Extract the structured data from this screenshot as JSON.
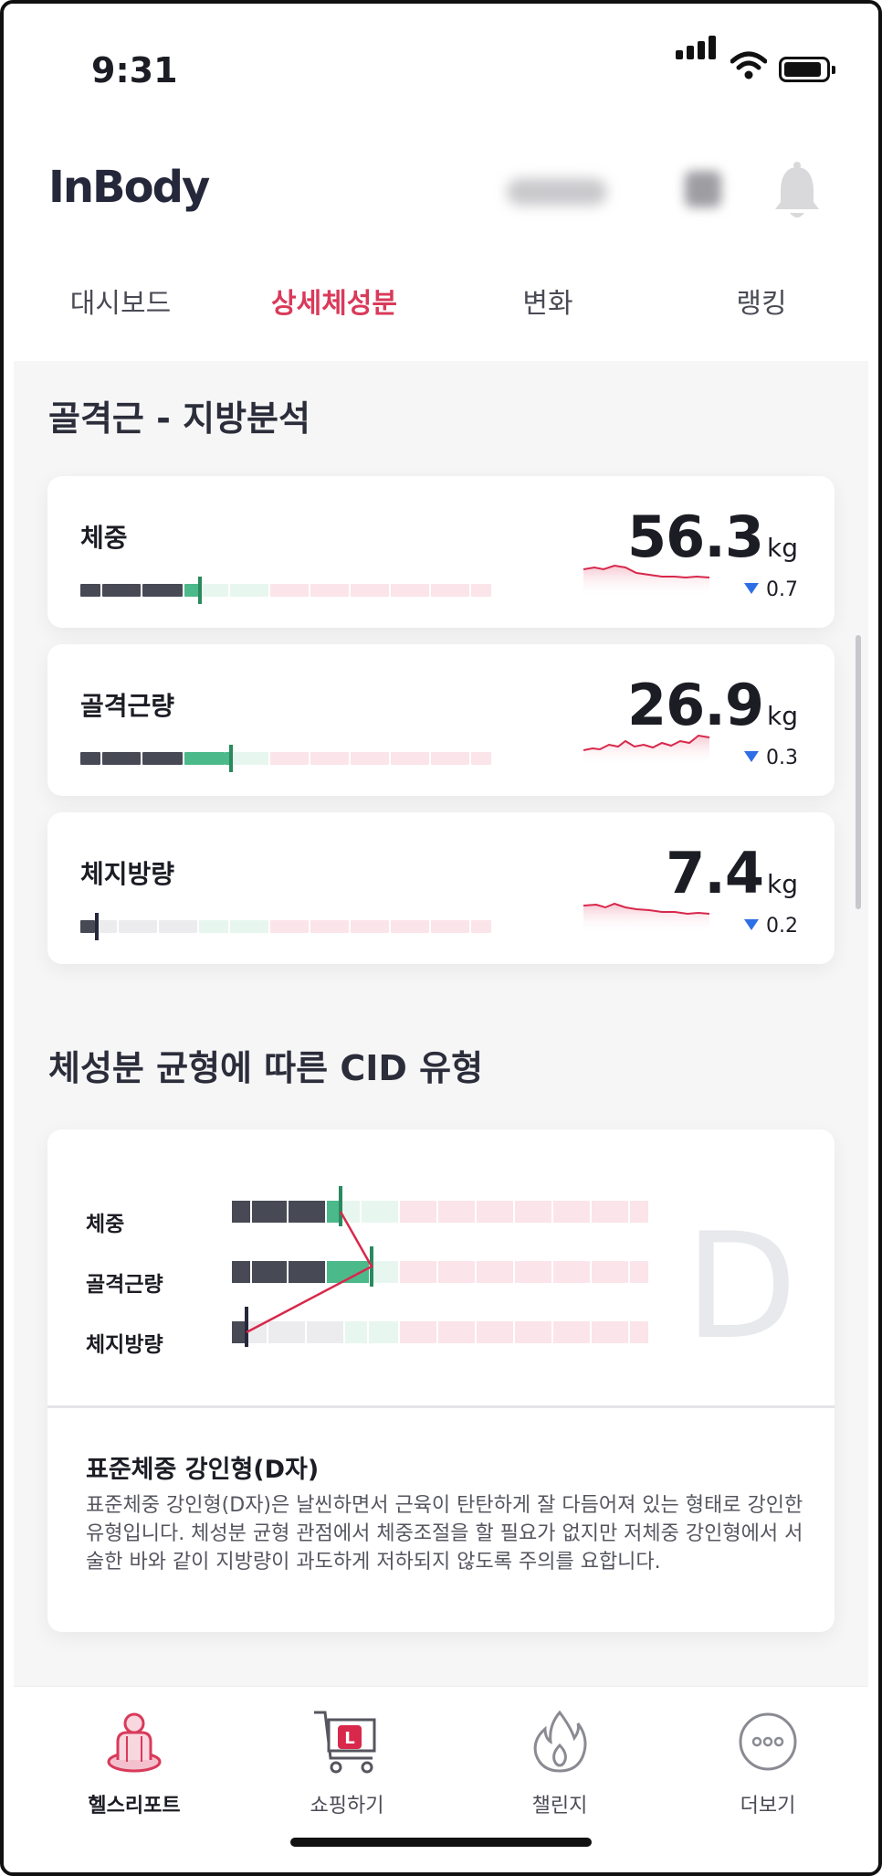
{
  "status": {
    "time": "9:31"
  },
  "header": {
    "logo": "InBody"
  },
  "tabs": [
    {
      "label": "대시보드",
      "active": false
    },
    {
      "label": "상세체성분",
      "active": true
    },
    {
      "label": "변화",
      "active": false
    },
    {
      "label": "랭킹",
      "active": false
    }
  ],
  "section1": {
    "title": "골격근 - 지방분석"
  },
  "metrics": [
    {
      "label": "체중",
      "value": "56.3",
      "unit": "kg",
      "change": "0.7",
      "direction": "down"
    },
    {
      "label": "골격근량",
      "value": "26.9",
      "unit": "kg",
      "change": "0.3",
      "direction": "down"
    },
    {
      "label": "체지방량",
      "value": "7.4",
      "unit": "kg",
      "change": "0.2",
      "direction": "down"
    }
  ],
  "section2": {
    "title": "체성분 균형에 따른 CID 유형"
  },
  "cid": {
    "rows": [
      "체중",
      "골격근량",
      "체지방량"
    ],
    "letter": "D",
    "type_title": "표준체중 강인형(D자)",
    "description": "표준체중 강인형(D자)은 날씬하면서 근육이 탄탄하게 잘 다듬어져 있는 형태로 강인한 유형입니다. 체성분 균형 관점에서 체중조절을 할 필요가 없지만 저체중 강인형에서 서술한 바와 같이 지방량이 과도하게 저하되지 않도록 주의를 요합니다."
  },
  "bottom_nav": [
    {
      "label": "헬스리포트",
      "icon": "health-report-icon",
      "active": true
    },
    {
      "label": "쇼핑하기",
      "icon": "shopping-cart-icon",
      "active": false
    },
    {
      "label": "챌린지",
      "icon": "flame-icon",
      "active": false
    },
    {
      "label": "더보기",
      "icon": "more-icon",
      "active": false
    }
  ],
  "colors": {
    "accent": "#d93a5a",
    "under": "#474a55",
    "normal": "#4cb98b",
    "over": "#fbe4ea",
    "delta_down": "#2f6fe6",
    "sparkline": "#d8284b"
  }
}
